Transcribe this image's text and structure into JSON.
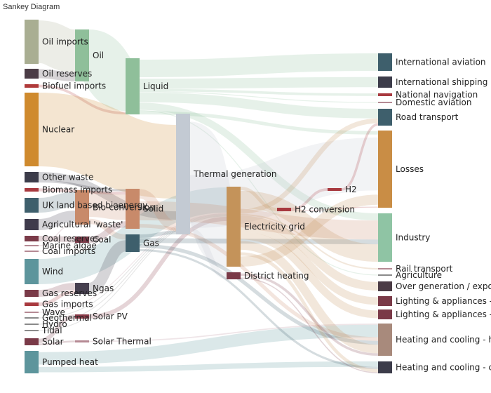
{
  "title": "Sankey Diagram",
  "nodes": [
    {
      "id": "oil_imports",
      "label": "Oil imports",
      "color": "#a9ae92"
    },
    {
      "id": "oil_reserves",
      "label": "Oil reserves",
      "color": "#4b3c46"
    },
    {
      "id": "biofuel_imports",
      "label": "Biofuel imports",
      "color": "#b03a3a"
    },
    {
      "id": "nuclear",
      "label": "Nuclear",
      "color": "#cf8a2e"
    },
    {
      "id": "other_waste",
      "label": "Other waste",
      "color": "#3c3c4a"
    },
    {
      "id": "biomass_imports",
      "label": "Biomass imports",
      "color": "#a8393f"
    },
    {
      "id": "uk_land_bio",
      "label": "UK land based bioenergy",
      "color": "#3e5f6c"
    },
    {
      "id": "agri_waste",
      "label": "Agricultural 'waste'",
      "color": "#3f3b4c"
    },
    {
      "id": "coal_reserves",
      "label": "Coal reserves",
      "color": "#7a3a48"
    },
    {
      "id": "marine_algae",
      "label": "Marine algae",
      "color": "#b58a94"
    },
    {
      "id": "coal_imports",
      "label": "Coal imports",
      "color": "#b58a94"
    },
    {
      "id": "wind",
      "label": "Wind",
      "color": "#5d959c"
    },
    {
      "id": "gas_reserves",
      "label": "Gas reserves",
      "color": "#7a3a48"
    },
    {
      "id": "gas_imports",
      "label": "Gas imports",
      "color": "#a8393f"
    },
    {
      "id": "wave",
      "label": "Wave",
      "color": "#b58a94"
    },
    {
      "id": "geothermal",
      "label": "Geothermal",
      "color": "#8a8a8a"
    },
    {
      "id": "hydro",
      "label": "Hydro",
      "color": "#8a8a8a"
    },
    {
      "id": "tidal",
      "label": "Tidal",
      "color": "#8a8a8a"
    },
    {
      "id": "solar",
      "label": "Solar",
      "color": "#7a3a48"
    },
    {
      "id": "pumped_heat",
      "label": "Pumped heat",
      "color": "#5d959c"
    },
    {
      "id": "oil",
      "label": "Oil",
      "color": "#8fbf9a"
    },
    {
      "id": "bio_conversion",
      "label": "Bio-conversion",
      "color": "#c88a6a"
    },
    {
      "id": "coal",
      "label": "Coal",
      "color": "#7a3a48"
    },
    {
      "id": "ngas",
      "label": "Ngas",
      "color": "#463f4f"
    },
    {
      "id": "solar_pv",
      "label": "Solar PV",
      "color": "#8a3a48"
    },
    {
      "id": "solar_thermal",
      "label": "Solar Thermal",
      "color": "#b58a94"
    },
    {
      "id": "liquid",
      "label": "Liquid",
      "color": "#8fbf9a"
    },
    {
      "id": "solid",
      "label": "Solid",
      "color": "#c88a6a"
    },
    {
      "id": "gas",
      "label": "Gas",
      "color": "#3e5f6c"
    },
    {
      "id": "thermal_generation",
      "label": "Thermal generation",
      "color": "#c3cad3"
    },
    {
      "id": "electricity_grid",
      "label": "Electricity grid",
      "color": "#c4935a"
    },
    {
      "id": "district_heating",
      "label": "District heating",
      "color": "#7a3a48"
    },
    {
      "id": "h2_conversion",
      "label": "H2 conversion",
      "color": "#a8393f"
    },
    {
      "id": "h2",
      "label": "H2",
      "color": "#a8393f"
    },
    {
      "id": "intl_aviation",
      "label": "International aviation",
      "color": "#3e5f6c"
    },
    {
      "id": "intl_shipping",
      "label": "International shipping",
      "color": "#3c3c4a"
    },
    {
      "id": "natl_navigation",
      "label": "National navigation",
      "color": "#a8393f"
    },
    {
      "id": "dom_aviation",
      "label": "Domestic aviation",
      "color": "#b58a94"
    },
    {
      "id": "road_transport",
      "label": "Road transport",
      "color": "#3e5f6c"
    },
    {
      "id": "losses",
      "label": "Losses",
      "color": "#c98d45"
    },
    {
      "id": "industry",
      "label": "Industry",
      "color": "#8fc4a4"
    },
    {
      "id": "rail_transport",
      "label": "Rail transport",
      "color": "#b58a94"
    },
    {
      "id": "agriculture",
      "label": "Agriculture",
      "color": "#8a8a8a"
    },
    {
      "id": "over_generation",
      "label": "Over generation / exports",
      "color": "#4b3c46"
    },
    {
      "id": "lighting_home",
      "label": "Lighting & appliances - homes",
      "color": "#7a3a48"
    },
    {
      "id": "lighting_commercial",
      "label": "Lighting & appliances - commercial",
      "color": "#7a3a48"
    },
    {
      "id": "heating_home",
      "label": "Heating and cooling - homes",
      "color": "#a88a7c"
    },
    {
      "id": "heating_commercial",
      "label": "Heating and cooling - commercial",
      "color": "#3c3c4a"
    }
  ],
  "links": [
    {
      "source": "oil_imports",
      "target": "oil",
      "value": 52
    },
    {
      "source": "oil_reserves",
      "target": "oil",
      "value": 11
    },
    {
      "source": "oil",
      "target": "liquid",
      "value": 63
    },
    {
      "source": "biofuel_imports",
      "target": "liquid",
      "value": 3
    },
    {
      "source": "nuclear",
      "target": "thermal_generation",
      "value": 102
    },
    {
      "source": "other_waste",
      "target": "thermal_generation",
      "value": 12
    },
    {
      "source": "other_waste",
      "target": "solid",
      "value": 3
    },
    {
      "source": "biomass_imports",
      "target": "solid",
      "value": 3
    },
    {
      "source": "uk_land_bio",
      "target": "bio_conversion",
      "value": 18
    },
    {
      "source": "agri_waste",
      "target": "bio_conversion",
      "value": 14
    },
    {
      "source": "bio_conversion",
      "target": "solid",
      "value": 26
    },
    {
      "source": "bio_conversion",
      "target": "gas",
      "value": 6
    },
    {
      "source": "coal_reserves",
      "target": "coal",
      "value": 8
    },
    {
      "source": "coal_imports",
      "target": "coal",
      "value": 1
    },
    {
      "source": "marine_algae",
      "target": "bio_conversion",
      "value": 1
    },
    {
      "source": "coal",
      "target": "solid",
      "value": 9
    },
    {
      "source": "wind",
      "target": "electricity_grid",
      "value": 34
    },
    {
      "source": "gas_reserves",
      "target": "ngas",
      "value": 9
    },
    {
      "source": "gas_imports",
      "target": "ngas",
      "value": 5
    },
    {
      "source": "ngas",
      "target": "gas",
      "value": 14
    },
    {
      "source": "wave",
      "target": "electricity_grid",
      "value": 1
    },
    {
      "source": "geothermal",
      "target": "electricity_grid",
      "value": 1
    },
    {
      "source": "hydro",
      "target": "electricity_grid",
      "value": 1
    },
    {
      "source": "tidal",
      "target": "electricity_grid",
      "value": 1
    },
    {
      "source": "solar",
      "target": "solar_pv",
      "value": 6
    },
    {
      "source": "solar",
      "target": "solar_thermal",
      "value": 2
    },
    {
      "source": "solar_pv",
      "target": "electricity_grid",
      "value": 6
    },
    {
      "source": "solar_thermal",
      "target": "heating_home",
      "value": 2
    },
    {
      "source": "pumped_heat",
      "target": "heating_home",
      "value": 20
    },
    {
      "source": "pumped_heat",
      "target": "heating_commercial",
      "value": 10
    },
    {
      "source": "liquid",
      "target": "intl_aviation",
      "value": 24
    },
    {
      "source": "liquid",
      "target": "intl_shipping",
      "value": 12
    },
    {
      "source": "liquid",
      "target": "natl_navigation",
      "value": 3
    },
    {
      "source": "liquid",
      "target": "dom_aviation",
      "value": 1
    },
    {
      "source": "liquid",
      "target": "road_transport",
      "value": 12
    },
    {
      "source": "liquid",
      "target": "industry",
      "value": 9
    },
    {
      "source": "liquid",
      "target": "agriculture",
      "value": 1
    },
    {
      "source": "liquid",
      "target": "losses",
      "value": 4
    },
    {
      "source": "thermal_generation",
      "target": "electricity_grid",
      "value": 58
    },
    {
      "source": "thermal_generation",
      "target": "losses",
      "value": 50
    },
    {
      "source": "thermal_generation",
      "target": "district_heating",
      "value": 6
    },
    {
      "source": "solid",
      "target": "thermal_generation",
      "value": 10
    },
    {
      "source": "solid",
      "target": "industry",
      "value": 24
    },
    {
      "source": "solid",
      "target": "heating_home",
      "value": 6
    },
    {
      "source": "gas",
      "target": "thermal_generation",
      "value": 4
    },
    {
      "source": "gas",
      "target": "industry",
      "value": 6
    },
    {
      "source": "gas",
      "target": "heating_home",
      "value": 6
    },
    {
      "source": "gas",
      "target": "heating_commercial",
      "value": 4
    },
    {
      "source": "electricity_grid",
      "target": "h2_conversion",
      "value": 4
    },
    {
      "source": "electricity_grid",
      "target": "industry",
      "value": 22
    },
    {
      "source": "electricity_grid",
      "target": "road_transport",
      "value": 6
    },
    {
      "source": "electricity_grid",
      "target": "rail_transport",
      "value": 2
    },
    {
      "source": "electricity_grid",
      "target": "over_generation",
      "value": 10
    },
    {
      "source": "electricity_grid",
      "target": "lighting_home",
      "value": 9
    },
    {
      "source": "electricity_grid",
      "target": "lighting_commercial",
      "value": 9
    },
    {
      "source": "electricity_grid",
      "target": "heating_home",
      "value": 14
    },
    {
      "source": "electricity_grid",
      "target": "heating_commercial",
      "value": 6
    },
    {
      "source": "electricity_grid",
      "target": "losses",
      "value": 12
    },
    {
      "source": "h2_conversion",
      "target": "h2",
      "value": 3
    },
    {
      "source": "h2_conversion",
      "target": "losses",
      "value": 1
    },
    {
      "source": "h2",
      "target": "road_transport",
      "value": 3
    },
    {
      "source": "district_heating",
      "target": "heating_home",
      "value": 4
    },
    {
      "source": "district_heating",
      "target": "heating_commercial",
      "value": 2
    }
  ]
}
